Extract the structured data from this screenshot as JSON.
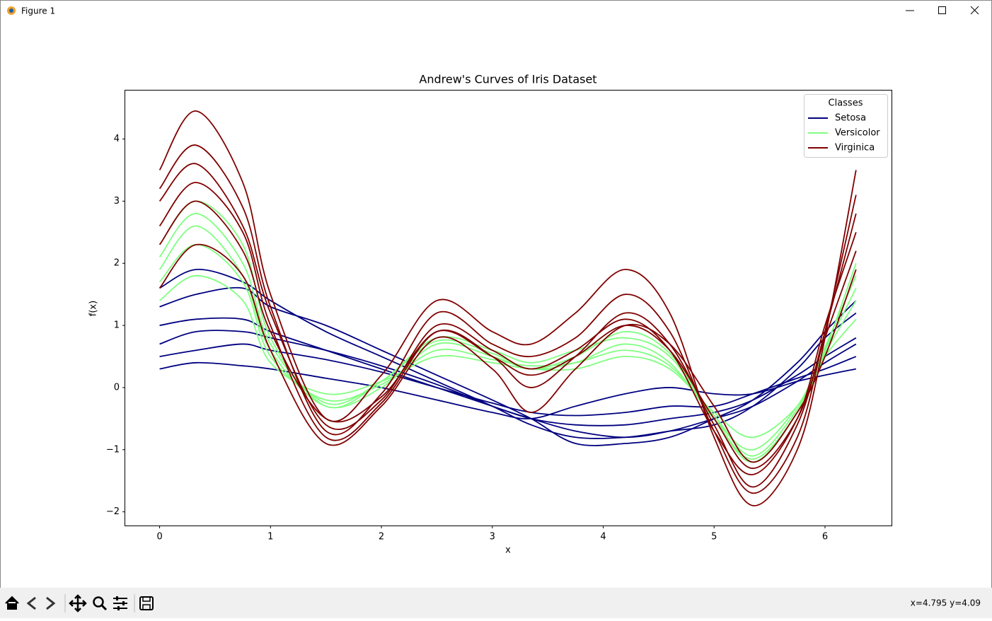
{
  "window": {
    "title": "Figure 1",
    "status": "x=4.795 y=4.09"
  },
  "chart_data": {
    "type": "line",
    "title": "Andrew's Curves of Iris Dataset",
    "xlabel": "x",
    "ylabel": "f(x)",
    "xlim": [
      -0.31,
      6.6
    ],
    "ylim": [
      -2.22,
      4.78
    ],
    "xticks": [
      0,
      1,
      2,
      3,
      4,
      5,
      6
    ],
    "yticks": [
      {
        "value": -2,
        "label": "−2"
      },
      {
        "value": -1,
        "label": "−1"
      },
      0,
      1,
      2,
      3,
      4
    ],
    "legend_title": "Classes",
    "legend": "upper right",
    "x": [
      0,
      0.33,
      0.75,
      1,
      1.5,
      2,
      2.5,
      3,
      3.35,
      3.75,
      4.2,
      4.6,
      5,
      5.35,
      5.75,
      6,
      6.28
    ],
    "series": [
      {
        "name": "Setosa",
        "color": "#000080",
        "curves": [
          [
            1.0,
            1.1,
            1.1,
            0.9,
            0.6,
            0.3,
            0.0,
            -0.3,
            -0.5,
            -0.6,
            -0.6,
            -0.5,
            -0.4,
            -0.2,
            0.2,
            0.5,
            0.8
          ],
          [
            1.6,
            1.9,
            1.7,
            1.4,
            0.9,
            0.5,
            0.1,
            -0.3,
            -0.6,
            -0.8,
            -0.8,
            -0.7,
            -0.6,
            -0.3,
            0.3,
            0.8,
            1.2
          ],
          [
            0.3,
            0.4,
            0.35,
            0.3,
            0.15,
            0.0,
            -0.2,
            -0.4,
            -0.5,
            -0.3,
            -0.1,
            0.0,
            -0.1,
            -0.1,
            0.1,
            0.2,
            0.3
          ],
          [
            0.7,
            0.9,
            0.9,
            0.8,
            0.6,
            0.35,
            0.05,
            -0.3,
            -0.5,
            -0.7,
            -0.8,
            -0.7,
            -0.5,
            -0.3,
            0.1,
            0.4,
            0.7
          ],
          [
            1.3,
            1.5,
            1.6,
            1.3,
            1.0,
            0.6,
            0.2,
            -0.2,
            -0.5,
            -0.9,
            -0.9,
            -0.8,
            -0.5,
            -0.2,
            0.4,
            0.9,
            1.4
          ],
          [
            0.5,
            0.6,
            0.7,
            0.6,
            0.45,
            0.25,
            0.0,
            -0.25,
            -0.4,
            -0.45,
            -0.4,
            -0.3,
            -0.3,
            -0.1,
            0.15,
            0.3,
            0.5
          ]
        ]
      },
      {
        "name": "Versicolor",
        "color": "#80ff80",
        "curves": [
          [
            1.9,
            2.6,
            1.8,
            0.6,
            -0.3,
            0.0,
            0.7,
            0.5,
            0.3,
            0.4,
            0.7,
            0.4,
            -0.5,
            -1.0,
            -0.3,
            0.6,
            1.6
          ],
          [
            2.3,
            3.0,
            2.3,
            0.8,
            -0.3,
            0.1,
            0.8,
            0.6,
            0.4,
            0.6,
            0.8,
            0.5,
            -0.5,
            -1.2,
            -0.4,
            0.6,
            2.0
          ],
          [
            1.4,
            1.8,
            1.4,
            0.4,
            -0.1,
            0.1,
            0.5,
            0.4,
            0.3,
            0.3,
            0.5,
            0.3,
            -0.4,
            -0.8,
            -0.3,
            0.5,
            1.1
          ],
          [
            1.7,
            2.3,
            1.7,
            0.5,
            -0.2,
            0.05,
            0.6,
            0.45,
            0.35,
            0.4,
            0.6,
            0.35,
            -0.45,
            -1.1,
            -0.35,
            0.55,
            1.4
          ],
          [
            2.1,
            2.8,
            2.0,
            0.7,
            -0.25,
            0.1,
            0.75,
            0.55,
            0.3,
            0.5,
            0.9,
            0.55,
            -0.5,
            -1.15,
            -0.4,
            0.65,
            1.8
          ]
        ]
      },
      {
        "name": "Virginica",
        "color": "#800000",
        "curves": [
          [
            3.0,
            3.6,
            2.6,
            1.2,
            -0.6,
            -0.2,
            1.0,
            0.6,
            0.3,
            0.6,
            1.1,
            0.6,
            -0.7,
            -1.4,
            -0.5,
            1.0,
            2.5
          ],
          [
            3.5,
            4.45,
            3.3,
            1.5,
            -0.5,
            0.2,
            1.4,
            0.9,
            0.7,
            1.2,
            1.9,
            1.2,
            -0.8,
            -1.9,
            -1.0,
            0.8,
            3.5
          ],
          [
            1.6,
            2.3,
            1.8,
            0.6,
            -0.9,
            -0.3,
            0.8,
            0.3,
            -0.4,
            0.3,
            1.0,
            0.7,
            -0.3,
            -1.2,
            -0.4,
            0.5,
            1.9
          ],
          [
            2.6,
            3.3,
            2.5,
            1.0,
            -0.8,
            -0.25,
            0.9,
            0.5,
            0.0,
            0.5,
            1.2,
            0.7,
            -0.6,
            -1.6,
            -0.6,
            0.9,
            2.8
          ],
          [
            3.2,
            3.9,
            2.9,
            1.3,
            -0.7,
            -0.1,
            1.2,
            0.7,
            0.5,
            0.8,
            1.5,
            0.9,
            -0.7,
            -1.7,
            -0.8,
            0.9,
            3.1
          ],
          [
            2.3,
            3.0,
            2.2,
            0.9,
            -0.5,
            -0.15,
            0.9,
            0.5,
            0.2,
            0.5,
            1.0,
            0.6,
            -0.5,
            -1.3,
            -0.5,
            0.8,
            2.2
          ]
        ]
      }
    ]
  }
}
